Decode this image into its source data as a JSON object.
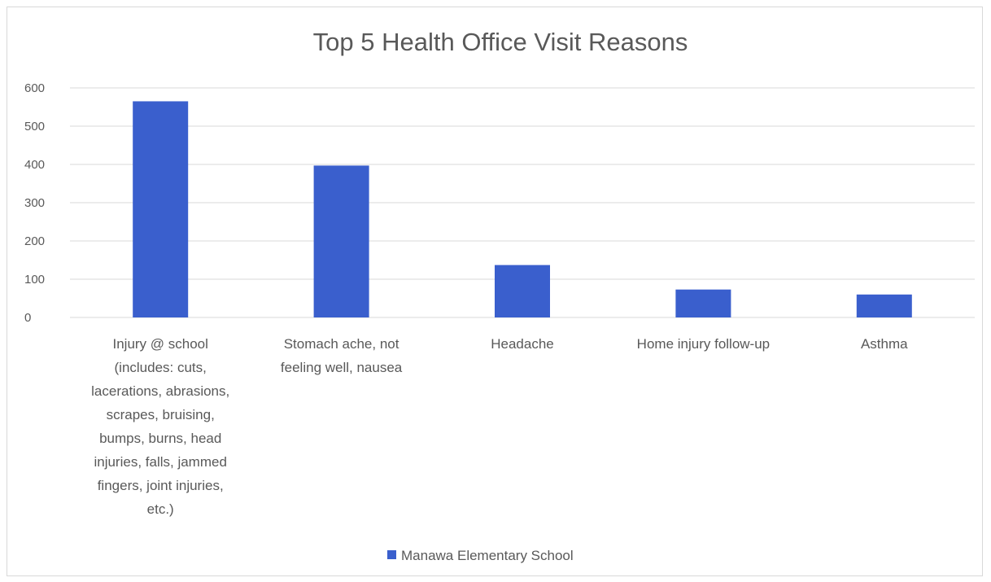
{
  "chart_data": {
    "type": "bar",
    "title": "Top 5 Health Office Visit Reasons",
    "categories": [
      "Injury @ school (includes: cuts, lacerations, abrasions, scrapes, bruising, bumps, burns, head injuries, falls, jammed fingers, joint injuries, etc.)",
      "Stomach ache, not feeling well, nausea",
      "Headache",
      "Home injury follow-up",
      "Asthma"
    ],
    "category_lines": [
      [
        "Injury @ school",
        "(includes: cuts,",
        "lacerations, abrasions,",
        "scrapes, bruising,",
        "bumps, burns, head",
        "injuries, falls, jammed",
        "fingers, joint injuries,",
        "etc.)"
      ],
      [
        "Stomach ache, not",
        "feeling well, nausea"
      ],
      [
        "Headache"
      ],
      [
        "Home injury follow-up"
      ],
      [
        "Asthma"
      ]
    ],
    "series": [
      {
        "name": "Manawa Elementary School",
        "values": [
          565,
          397,
          137,
          73,
          60
        ]
      }
    ],
    "yticks": [
      0,
      100,
      200,
      300,
      400,
      500,
      600
    ],
    "ylim": [
      0,
      600
    ],
    "xlabel": "",
    "ylabel": "",
    "grid": true,
    "legend_position": "bottom",
    "bar_color": "#3a5fcd"
  }
}
